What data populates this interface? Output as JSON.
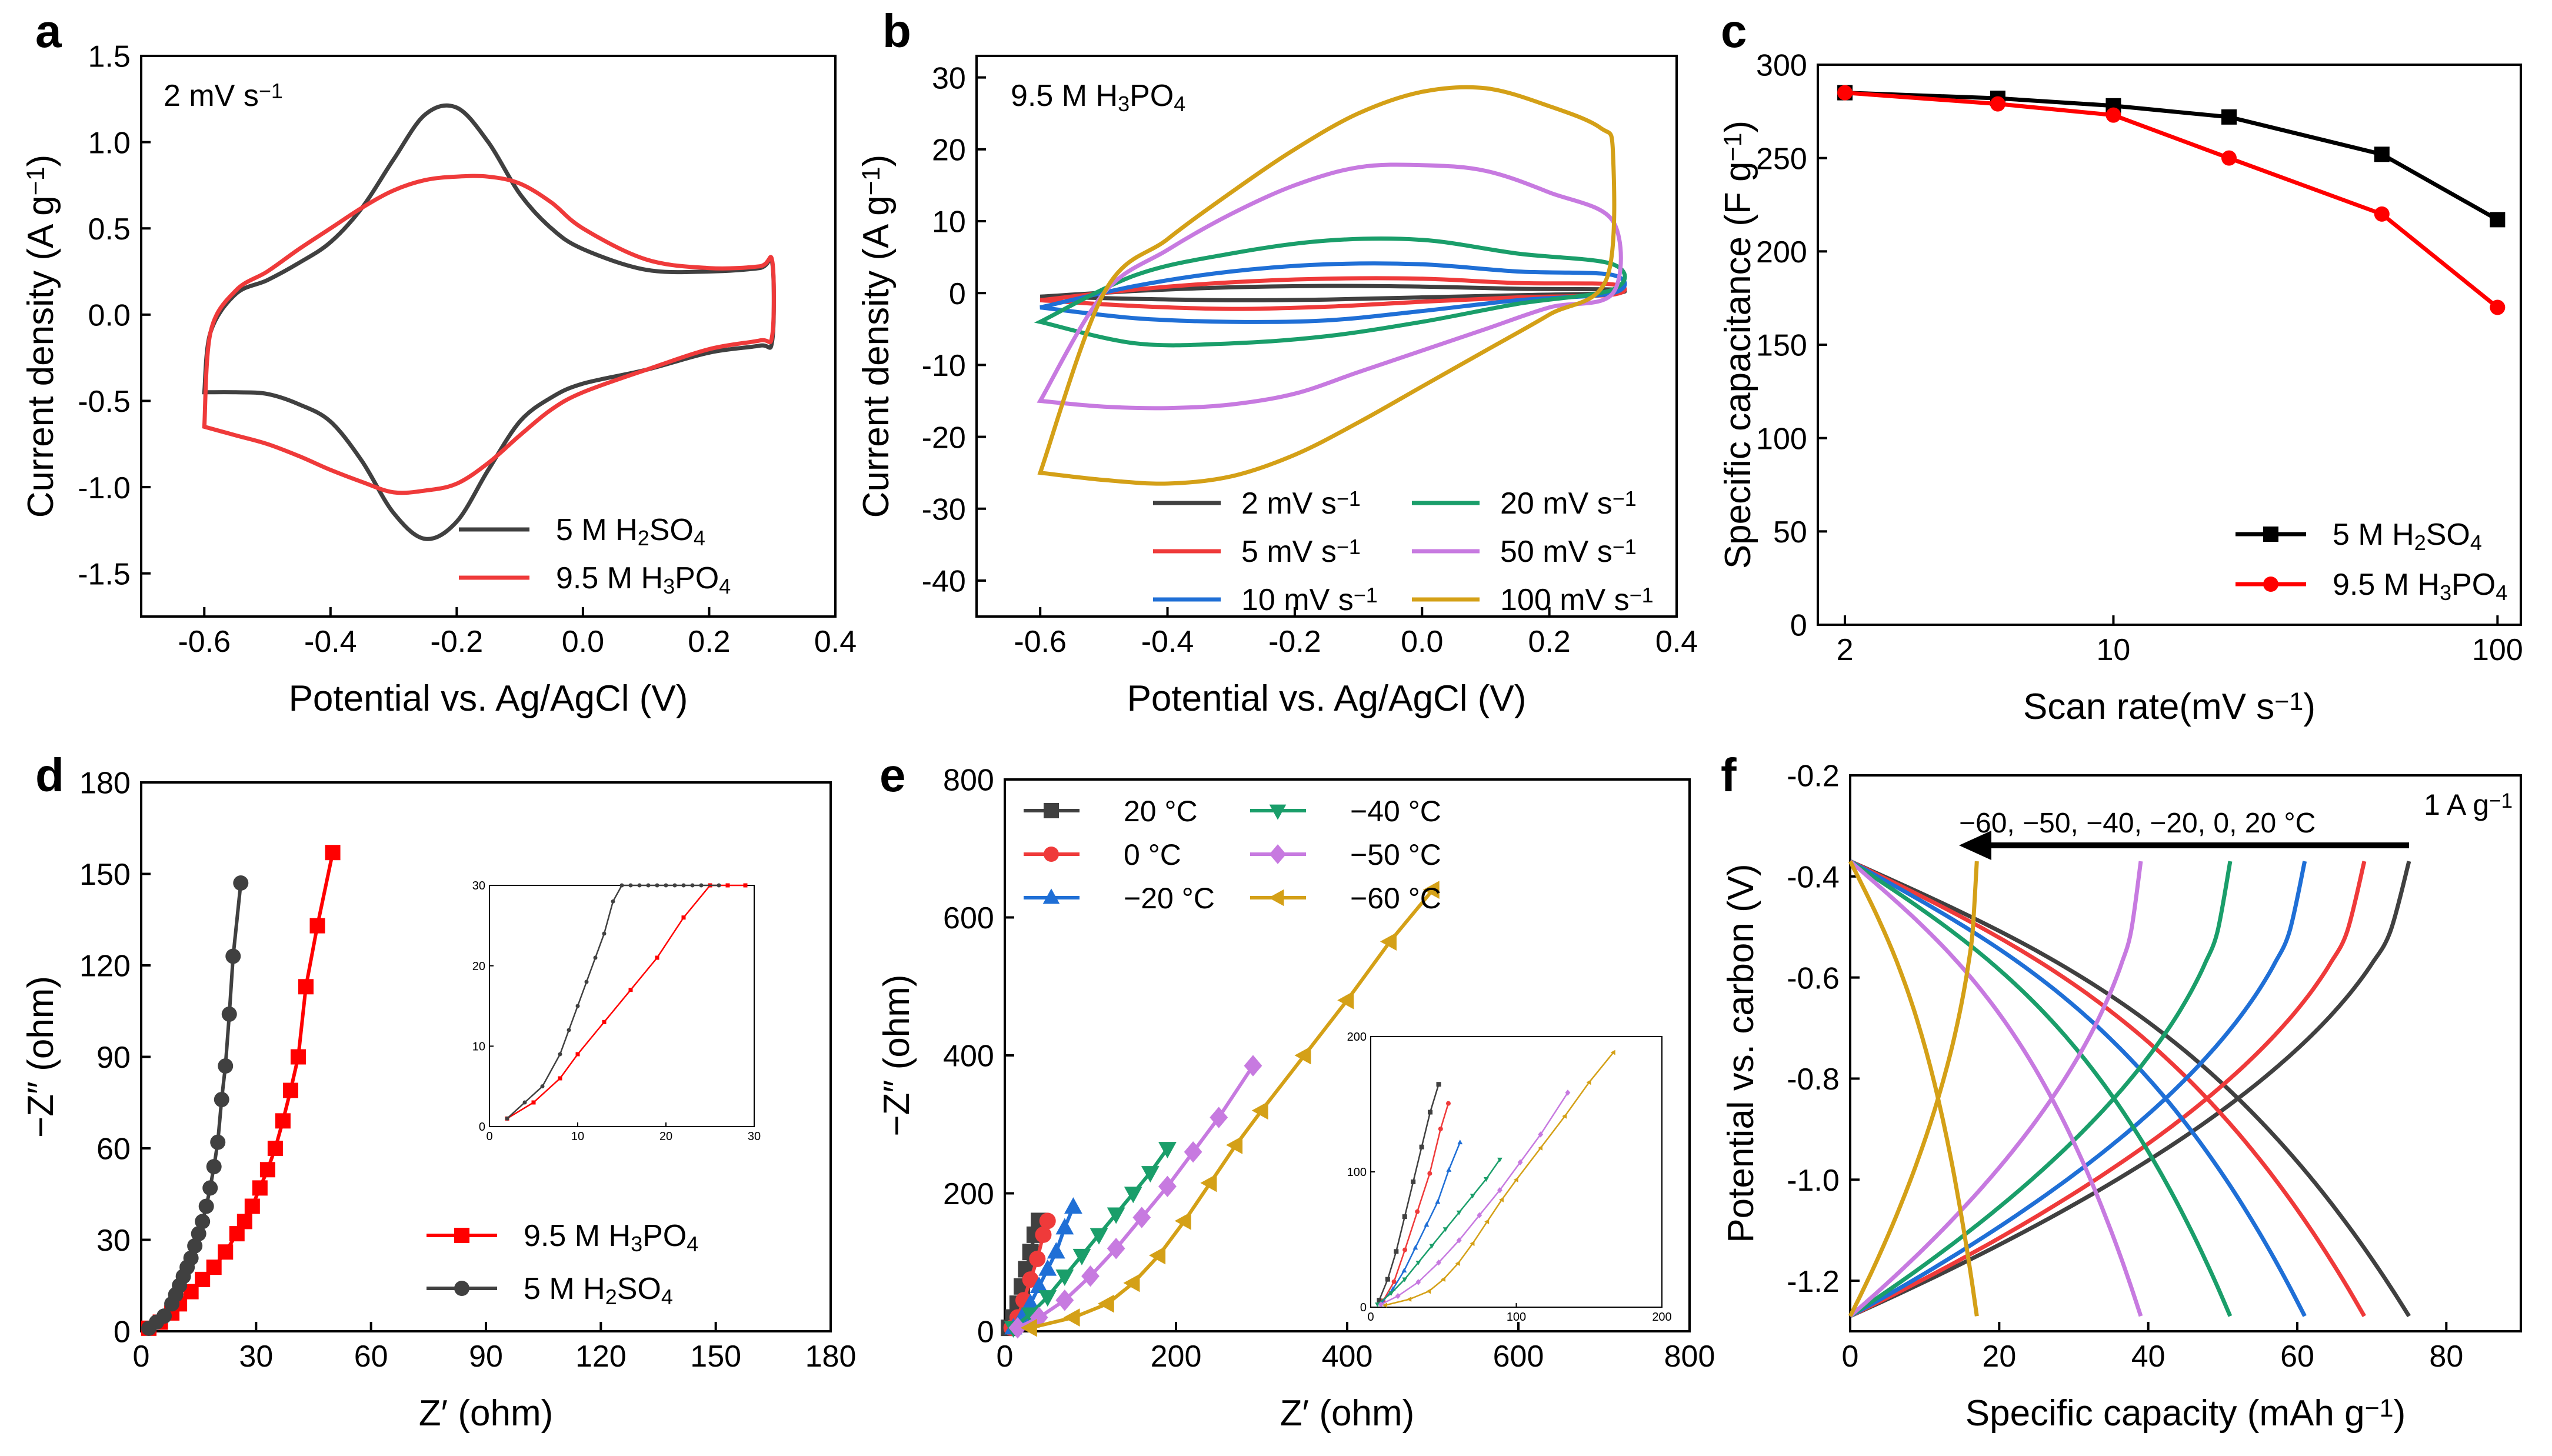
{
  "colors": {
    "black": "#404040",
    "red": "#ef3a3a",
    "blue": "#1f6fd6",
    "green": "#1a9e6a",
    "purple": "#c77ae0",
    "gold": "#d4a017",
    "c_black": "#000000",
    "c_red": "#ff0000"
  },
  "panels": {
    "a": {
      "label": "a"
    },
    "b": {
      "label": "b"
    },
    "c": {
      "label": "c"
    },
    "d": {
      "label": "d"
    },
    "e": {
      "label": "e"
    },
    "f": {
      "label": "f"
    }
  },
  "chart_data": [
    {
      "id": "a",
      "type": "line",
      "title": "",
      "annotation": "2 mV s⁻¹",
      "xlabel": "Potential vs. Ag/AgCl (V)",
      "ylabel": "Current density (A g⁻¹)",
      "xlim": [
        -0.7,
        0.4
      ],
      "ylim": [
        -1.75,
        1.5
      ],
      "xticks": [
        -0.6,
        -0.4,
        -0.2,
        0.0,
        0.2,
        0.4
      ],
      "xticklabels": [
        "-0.6",
        "-0.4",
        "-0.2",
        "0.0",
        "0.2",
        "0.4"
      ],
      "yticks": [
        -1.5,
        -1.0,
        -0.5,
        0.0,
        0.5,
        1.0,
        1.5
      ],
      "yticklabels": [
        "-1.5",
        "-1.0",
        "-0.5",
        "0.0",
        "0.5",
        "1.0",
        "1.5"
      ],
      "legend_position": "bottom-right",
      "series": [
        {
          "name": "5 M H₂SO₄",
          "color_key": "black",
          "x": [
            -0.6,
            -0.59,
            -0.55,
            -0.5,
            -0.45,
            -0.4,
            -0.35,
            -0.3,
            -0.25,
            -0.2,
            -0.15,
            -0.1,
            -0.05,
            0.0,
            0.1,
            0.2,
            0.28,
            0.3,
            0.3,
            0.28,
            0.2,
            0.1,
            0.0,
            -0.05,
            -0.1,
            -0.15,
            -0.2,
            -0.25,
            -0.3,
            -0.35,
            -0.4,
            -0.45,
            -0.5,
            -0.55,
            -0.6
          ],
          "y": [
            -0.45,
            -0.1,
            0.12,
            0.2,
            0.3,
            0.42,
            0.62,
            0.9,
            1.16,
            1.2,
            1.0,
            0.7,
            0.5,
            0.38,
            0.26,
            0.25,
            0.27,
            0.3,
            -0.15,
            -0.18,
            -0.22,
            -0.32,
            -0.4,
            -0.48,
            -0.62,
            -0.9,
            -1.2,
            -1.3,
            -1.15,
            -0.85,
            -0.62,
            -0.52,
            -0.46,
            -0.45,
            -0.45
          ]
        },
        {
          "name": "9.5 M H₃PO₄",
          "color_key": "red",
          "x": [
            -0.6,
            -0.59,
            -0.55,
            -0.5,
            -0.45,
            -0.4,
            -0.35,
            -0.3,
            -0.25,
            -0.2,
            -0.15,
            -0.1,
            -0.05,
            0.0,
            0.1,
            0.2,
            0.28,
            0.3,
            0.3,
            0.28,
            0.2,
            0.1,
            0.0,
            -0.05,
            -0.1,
            -0.15,
            -0.2,
            -0.25,
            -0.3,
            -0.35,
            -0.4,
            -0.45,
            -0.5,
            -0.55,
            -0.6
          ],
          "y": [
            -0.65,
            -0.1,
            0.14,
            0.25,
            0.38,
            0.5,
            0.62,
            0.72,
            0.78,
            0.8,
            0.8,
            0.76,
            0.65,
            0.5,
            0.32,
            0.27,
            0.28,
            0.31,
            -0.12,
            -0.15,
            -0.2,
            -0.32,
            -0.45,
            -0.55,
            -0.7,
            -0.86,
            -0.98,
            -1.02,
            -1.03,
            -0.97,
            -0.9,
            -0.82,
            -0.75,
            -0.7,
            -0.65
          ]
        }
      ]
    },
    {
      "id": "b",
      "type": "line",
      "title": "",
      "annotation": "9.5 M H₃PO₄",
      "xlabel": "Potential vs. Ag/AgCl (V)",
      "ylabel": "Current density (A g⁻¹)",
      "xlim": [
        -0.7,
        0.4
      ],
      "ylim": [
        -45,
        33
      ],
      "xticks": [
        -0.6,
        -0.4,
        -0.2,
        0.0,
        0.2,
        0.4
      ],
      "xticklabels": [
        "-0.6",
        "-0.4",
        "-0.2",
        "0.0",
        "0.2",
        "0.4"
      ],
      "yticks": [
        -40,
        -30,
        -20,
        -10,
        0,
        10,
        20,
        30
      ],
      "yticklabels": [
        "-40",
        "-30",
        "-20",
        "-10",
        "0",
        "10",
        "20",
        "30"
      ],
      "legend_position": "bottom",
      "series": [
        {
          "name": "2 mV s⁻¹",
          "color_key": "black",
          "x": [
            -0.6,
            -0.45,
            -0.3,
            -0.15,
            0.0,
            0.15,
            0.3,
            0.3,
            0.15,
            0.0,
            -0.15,
            -0.3,
            -0.45,
            -0.6
          ],
          "y": [
            -0.5,
            0.3,
            0.8,
            1.0,
            0.9,
            0.6,
            0.5,
            0.0,
            -0.3,
            -0.6,
            -0.9,
            -1.0,
            -0.8,
            -0.5
          ]
        },
        {
          "name": "5 mV s⁻¹",
          "color_key": "red",
          "x": [
            -0.6,
            -0.45,
            -0.3,
            -0.15,
            0.0,
            0.15,
            0.3,
            0.3,
            0.15,
            0.0,
            -0.15,
            -0.3,
            -0.45,
            -0.6
          ],
          "y": [
            -1.0,
            0.5,
            1.5,
            2.0,
            2.0,
            1.4,
            1.2,
            -0.2,
            -0.6,
            -1.2,
            -1.9,
            -2.2,
            -1.8,
            -1.0
          ]
        },
        {
          "name": "10 mV s⁻¹",
          "color_key": "blue",
          "x": [
            -0.6,
            -0.45,
            -0.3,
            -0.15,
            0.0,
            0.15,
            0.3,
            0.3,
            0.15,
            0.0,
            -0.15,
            -0.3,
            -0.45,
            -0.6
          ],
          "y": [
            -2.0,
            1.0,
            3.0,
            4.0,
            4.0,
            3.0,
            2.5,
            0.0,
            -1.0,
            -2.5,
            -3.8,
            -4.0,
            -3.5,
            -2.0
          ]
        },
        {
          "name": "20 mV s⁻¹",
          "color_key": "green",
          "x": [
            -0.6,
            -0.45,
            -0.3,
            -0.15,
            0.0,
            0.15,
            0.3,
            0.3,
            0.15,
            0.0,
            -0.15,
            -0.3,
            -0.45,
            -0.6
          ],
          "y": [
            -4.0,
            2.5,
            5.5,
            7.3,
            7.4,
            5.5,
            4.0,
            0.5,
            -1.5,
            -4.0,
            -6.0,
            -7.0,
            -7.0,
            -4.0
          ]
        },
        {
          "name": "50 mV s⁻¹",
          "color_key": "purple",
          "x": [
            -0.6,
            -0.5,
            -0.4,
            -0.3,
            -0.2,
            -0.1,
            0.0,
            0.1,
            0.2,
            0.3,
            0.3,
            0.2,
            0.1,
            0.0,
            -0.1,
            -0.2,
            -0.3,
            -0.4,
            -0.5,
            -0.6
          ],
          "y": [
            -15.0,
            0.0,
            6.0,
            11.0,
            15.0,
            17.5,
            17.8,
            17.0,
            14.0,
            10.0,
            0.0,
            -2.0,
            -5.0,
            -8.0,
            -11.0,
            -14.0,
            -15.5,
            -16.0,
            -15.8,
            -15.0
          ]
        },
        {
          "name": "100 mV s⁻¹",
          "color_key": "gold",
          "x": [
            -0.6,
            -0.5,
            -0.4,
            -0.3,
            -0.2,
            -0.1,
            0.0,
            0.1,
            0.2,
            0.28,
            0.3,
            0.29,
            0.2,
            0.1,
            0.0,
            -0.1,
            -0.2,
            -0.3,
            -0.4,
            -0.5,
            -0.6
          ],
          "y": [
            -25.0,
            0.0,
            7.5,
            14.0,
            20.0,
            25.0,
            28.0,
            28.5,
            26.0,
            23.0,
            19.5,
            2.0,
            -3.0,
            -8.0,
            -13.0,
            -18.0,
            -22.5,
            -25.5,
            -26.5,
            -26.0,
            -25.0
          ]
        }
      ]
    },
    {
      "id": "c",
      "type": "line",
      "title": "",
      "xlabel": "Scan rate(mV s⁻¹)",
      "ylabel": "Specific capacitance (F g⁻¹)",
      "xscale": "log",
      "xlim": [
        1.7,
        115
      ],
      "ylim": [
        0,
        300
      ],
      "xticks": [
        2,
        10,
        100
      ],
      "xticklabels": [
        "2",
        "10",
        "100"
      ],
      "yticks": [
        0,
        50,
        100,
        150,
        200,
        250,
        300
      ],
      "yticklabels": [
        "0",
        "50",
        "100",
        "150",
        "200",
        "250",
        "300"
      ],
      "legend_position": "bottom-right",
      "series": [
        {
          "name": "5 M H₂SO₄",
          "color_key": "c_black",
          "marker": "square",
          "x": [
            2,
            5,
            10,
            20,
            50,
            100
          ],
          "y": [
            285,
            282,
            278,
            272,
            252,
            217
          ]
        },
        {
          "name": "9.5 M H₃PO₄",
          "color_key": "c_red",
          "marker": "circle",
          "x": [
            2,
            5,
            10,
            20,
            50,
            100
          ],
          "y": [
            285,
            279,
            273,
            250,
            220,
            170
          ]
        }
      ]
    },
    {
      "id": "d",
      "type": "scatter",
      "title": "",
      "xlabel": "Z′ (ohm)",
      "ylabel": "−Z″ (ohm)",
      "xlim": [
        0,
        180
      ],
      "ylim": [
        0,
        180
      ],
      "xticks": [
        0,
        30,
        60,
        90,
        120,
        150,
        180
      ],
      "xticklabels": [
        "0",
        "30",
        "60",
        "90",
        "120",
        "150",
        "180"
      ],
      "yticks": [
        0,
        30,
        60,
        90,
        120,
        150,
        180
      ],
      "yticklabels": [
        "0",
        "30",
        "60",
        "90",
        "120",
        "150",
        "180"
      ],
      "legend_position": "bottom-right",
      "series": [
        {
          "name": "9.5 M H₃PO₄",
          "color_key": "c_red",
          "marker": "square",
          "x": [
            2,
            5,
            8,
            10,
            13,
            16,
            19,
            22,
            25,
            27,
            29,
            31,
            33,
            35,
            37,
            39,
            41,
            43,
            46,
            50
          ],
          "y": [
            1,
            3,
            6,
            9,
            13,
            17,
            21,
            26,
            32,
            36,
            41,
            47,
            53,
            60,
            69,
            79,
            90,
            113,
            133,
            157
          ]
        },
        {
          "name": "5 M H₂SO₄",
          "color_key": "black",
          "marker": "circle",
          "x": [
            2,
            4,
            6,
            8,
            9,
            10,
            11,
            12,
            13,
            14,
            15,
            16,
            17,
            18,
            19,
            20,
            21,
            22,
            23,
            24,
            26
          ],
          "y": [
            1,
            3,
            5,
            9,
            12,
            15,
            18,
            21,
            24,
            28,
            32,
            36,
            41,
            47,
            54,
            62,
            76,
            87,
            104,
            123,
            147
          ]
        }
      ],
      "inset": {
        "xlim": [
          0,
          30
        ],
        "ylim": [
          0,
          30
        ],
        "xticks": [
          0,
          10,
          20,
          30
        ],
        "xticklabels": [
          "0",
          "10",
          "20",
          "30"
        ],
        "yticks": [
          0,
          10,
          20,
          30
        ],
        "yticklabels": [
          "0",
          "10",
          "20",
          "30"
        ]
      }
    },
    {
      "id": "e",
      "type": "scatter",
      "title": "",
      "xlabel": "Z′ (ohm)",
      "ylabel": "−Z″ (ohm)",
      "xlim": [
        0,
        800
      ],
      "ylim": [
        0,
        800
      ],
      "xticks": [
        0,
        200,
        400,
        600,
        800
      ],
      "xticklabels": [
        "0",
        "200",
        "400",
        "600",
        "800"
      ],
      "yticks": [
        0,
        200,
        400,
        600,
        800
      ],
      "yticklabels": [
        "0",
        "200",
        "400",
        "600",
        "800"
      ],
      "legend_position": "top-left",
      "series": [
        {
          "name": "20 °C",
          "color_key": "black",
          "marker": "square",
          "x": [
            5,
            10,
            15,
            20,
            25,
            30,
            35,
            40
          ],
          "y": [
            5,
            20,
            40,
            65,
            90,
            115,
            140,
            160
          ]
        },
        {
          "name": "0 °C",
          "color_key": "red",
          "marker": "circle",
          "x": [
            8,
            15,
            22,
            30,
            38,
            45,
            50
          ],
          "y": [
            5,
            20,
            45,
            75,
            105,
            140,
            160
          ]
        },
        {
          "name": "−20 °C",
          "color_key": "blue",
          "marker": "triangle-up",
          "x": [
            10,
            20,
            30,
            40,
            50,
            60,
            70,
            80
          ],
          "y": [
            5,
            20,
            40,
            65,
            90,
            115,
            150,
            180
          ]
        },
        {
          "name": "−40 °C",
          "color_key": "green",
          "marker": "triangle-down",
          "x": [
            10,
            30,
            50,
            70,
            90,
            110,
            130,
            150,
            170,
            190
          ],
          "y": [
            5,
            25,
            50,
            80,
            110,
            140,
            170,
            200,
            230,
            265
          ]
        },
        {
          "name": "−50 °C",
          "color_key": "purple",
          "marker": "diamond",
          "x": [
            15,
            40,
            70,
            100,
            130,
            160,
            190,
            220,
            250,
            290
          ],
          "y": [
            5,
            20,
            45,
            80,
            120,
            165,
            210,
            260,
            310,
            385
          ]
        },
        {
          "name": "−60 °C",
          "color_key": "gold",
          "marker": "triangle-left",
          "x": [
            30,
            80,
            120,
            150,
            180,
            210,
            240,
            270,
            300,
            350,
            400,
            450,
            500
          ],
          "y": [
            5,
            20,
            40,
            70,
            110,
            160,
            215,
            270,
            320,
            400,
            480,
            565,
            640
          ]
        }
      ],
      "inset": {
        "xlim": [
          0,
          200
        ],
        "ylim": [
          0,
          200
        ],
        "xticks": [
          0,
          100,
          200
        ],
        "xticklabels": [
          "0",
          "100",
          "200"
        ],
        "yticks": [
          0,
          100,
          200
        ],
        "yticklabels": [
          "0",
          "100",
          "200"
        ]
      }
    },
    {
      "id": "f",
      "type": "line",
      "title": "",
      "annotation": "1 A g⁻¹",
      "arrow_label": "−60, −50, −40, −20, 0, 20 °C",
      "xlabel": "Specific capacity (mAh g⁻¹)",
      "ylabel": "Potential vs. carbon (V)",
      "xlim": [
        0,
        90
      ],
      "ylim": [
        -1.3,
        -0.2
      ],
      "xticks": [
        0,
        20,
        40,
        60,
        80
      ],
      "xticklabels": [
        "0",
        "20",
        "40",
        "60",
        "80"
      ],
      "yticks": [
        -1.2,
        -1.0,
        -0.8,
        -0.6,
        -0.4,
        -0.2
      ],
      "yticklabels": [
        "-1.2",
        "-1.0",
        "-0.8",
        "-0.6",
        "-0.4",
        "-0.2"
      ],
      "series": [
        {
          "name": "20 °C",
          "color_key": "black",
          "capacity": 75
        },
        {
          "name": "0 °C",
          "color_key": "red",
          "capacity": 69
        },
        {
          "name": "−20 °C",
          "color_key": "blue",
          "capacity": 61
        },
        {
          "name": "−40 °C",
          "color_key": "green",
          "capacity": 51
        },
        {
          "name": "−50 °C",
          "color_key": "purple",
          "capacity": 39
        },
        {
          "name": "−60 °C",
          "color_key": "gold",
          "capacity": 17
        }
      ]
    }
  ]
}
